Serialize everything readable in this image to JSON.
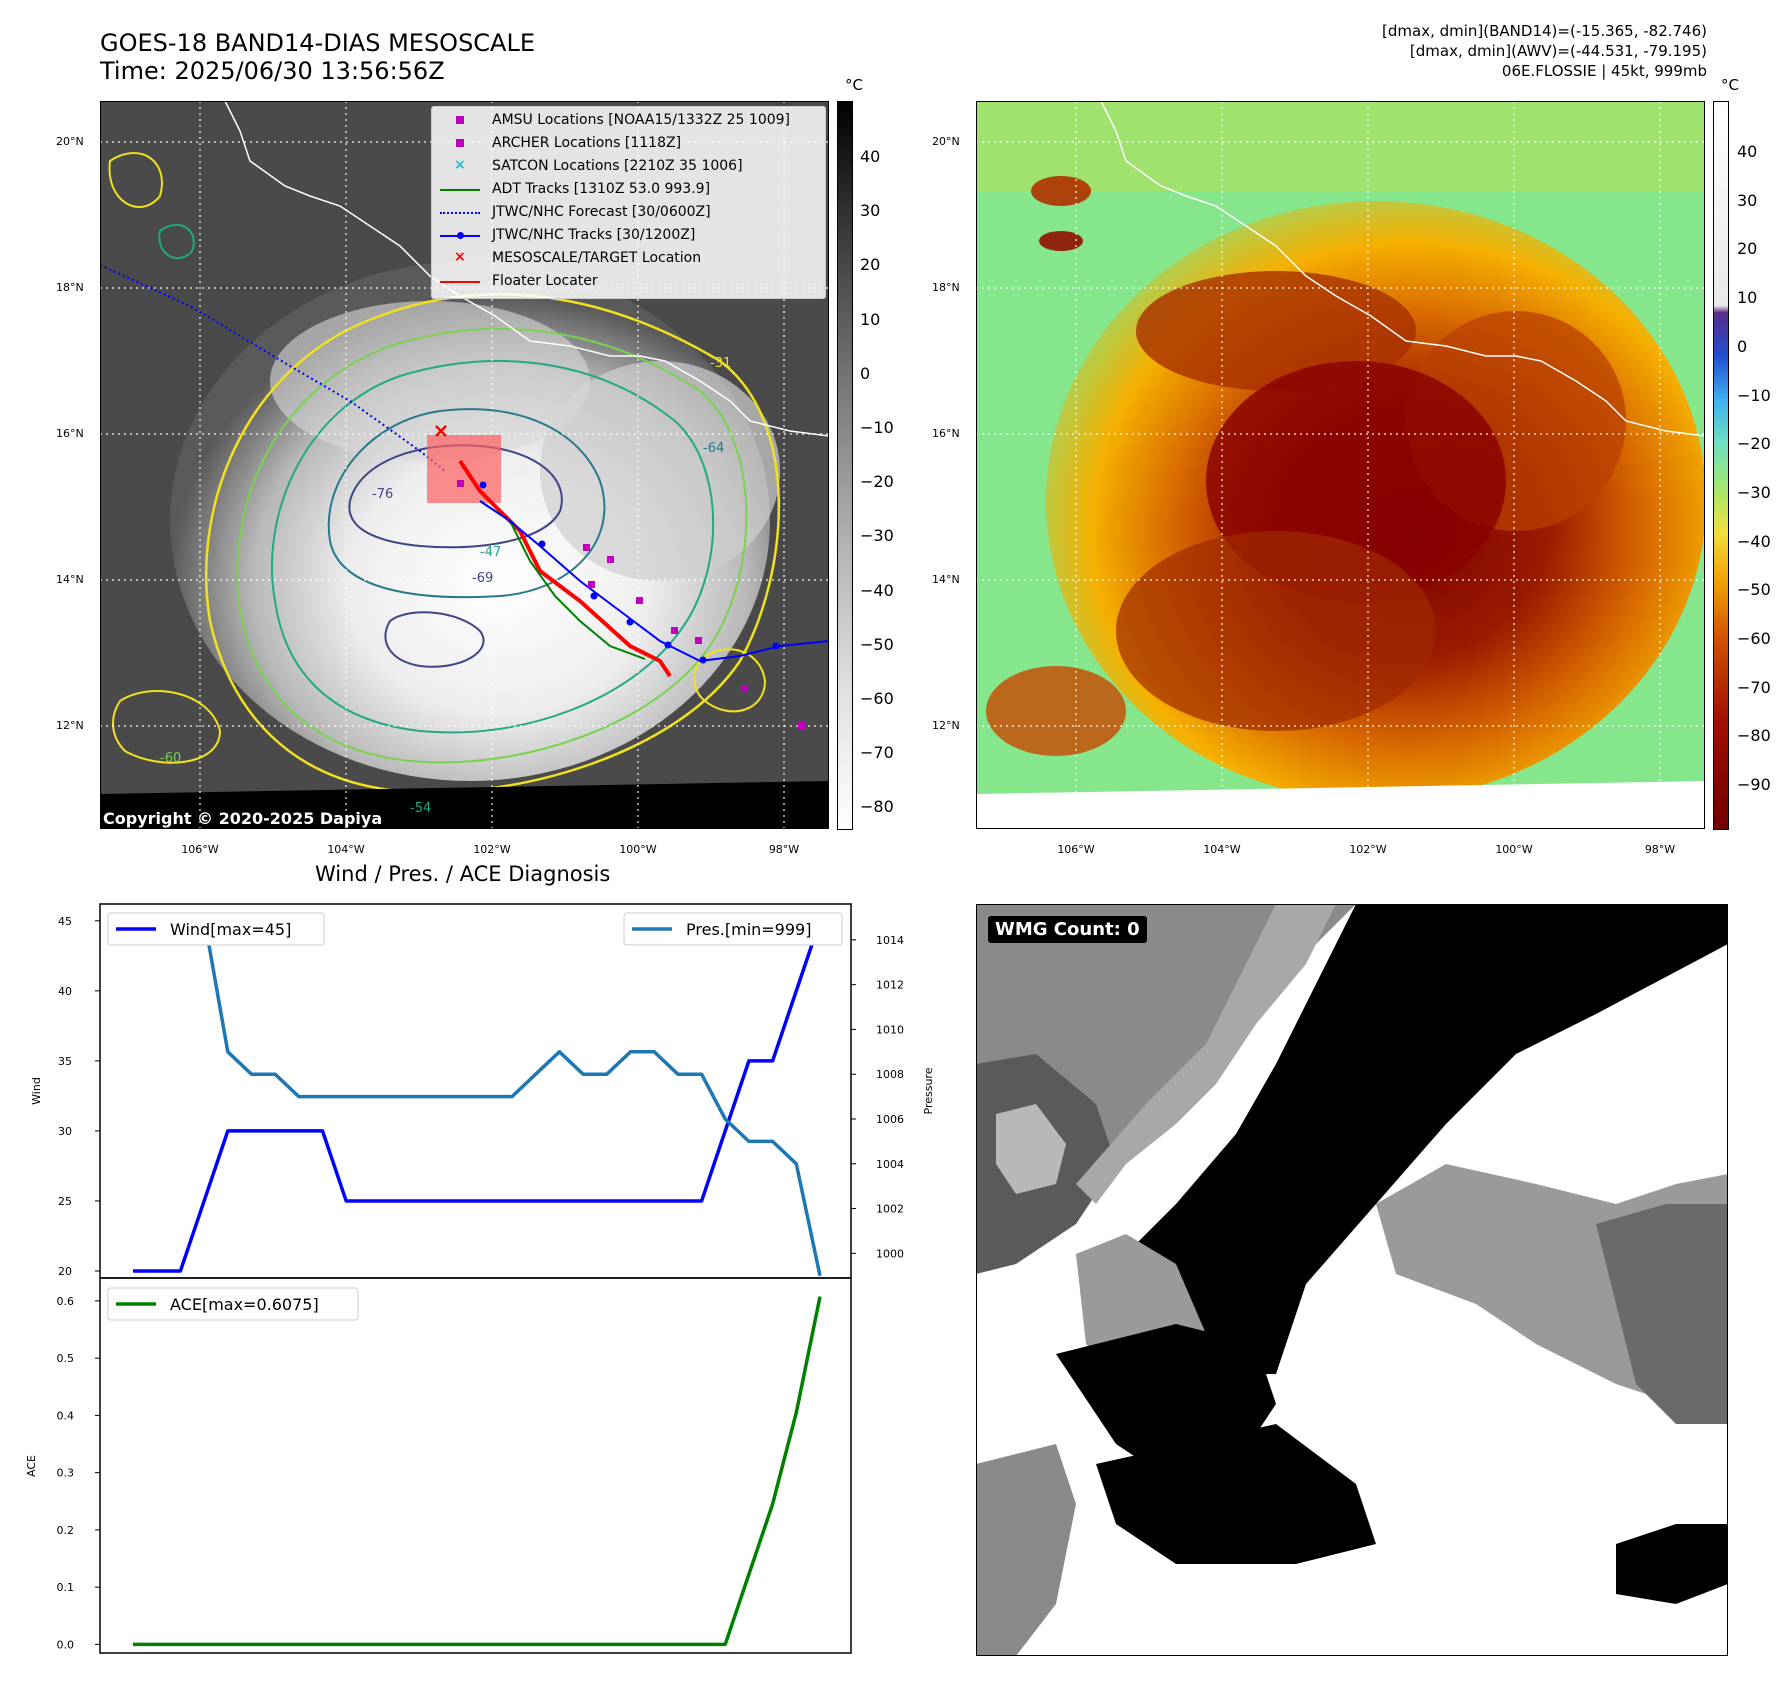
{
  "header": {
    "title_line1": "GOES-18 BAND14-DIAS MESOSCALE",
    "title_line2": "Time: 2025/06/30 13:56:56Z",
    "info_line1": "[dmax, dmin](BAND14)=(-15.365, -82.746)",
    "info_line2": "[dmax, dmin](AWV)=(-44.531, -79.195)",
    "info_line3": "06E.FLOSSIE | 45kt, 999mb"
  },
  "maps": {
    "lat_labels": [
      "20°N",
      "18°N",
      "16°N",
      "14°N",
      "12°N"
    ],
    "lon_labels": [
      "106°W",
      "104°W",
      "102°W",
      "100°W",
      "98°W"
    ],
    "copyright": "Copyright © 2020-2025 Dapiya",
    "unit": "°C",
    "ir_colorbar_ticks": [
      "40",
      "30",
      "20",
      "10",
      "0",
      "−10",
      "−20",
      "−30",
      "−40",
      "−50",
      "−60",
      "−70",
      "−80"
    ],
    "color_colorbar_ticks": [
      "40",
      "30",
      "20",
      "10",
      "0",
      "−10",
      "−20",
      "−30",
      "−40",
      "−50",
      "−60",
      "−70",
      "−80",
      "−90"
    ],
    "contour_labels": [
      "-76",
      "-64",
      "-54",
      "-60",
      "-47",
      "-31",
      "-69"
    ],
    "legend": [
      {
        "label": "AMSU Locations [NOAA15/1332Z 25 1009]",
        "marker": "square",
        "color": "#bf00bf"
      },
      {
        "label": "ARCHER Locations [1118Z]",
        "marker": "square",
        "color": "#bf00bf"
      },
      {
        "label": "SATCON Locations [2210Z 35 1006]",
        "marker": "x",
        "color": "#17becf"
      },
      {
        "label": "ADT Tracks [1310Z 53.0 993.9]",
        "marker": "line",
        "color": "#008000"
      },
      {
        "label": "JTWC/NHC Forecast [30/0600Z]",
        "marker": "dotted",
        "color": "#0000ff"
      },
      {
        "label": "JTWC/NHC Tracks [30/1200Z]",
        "marker": "line-dot",
        "color": "#0000ff"
      },
      {
        "label": "MESOSCALE/TARGET Location",
        "marker": "x",
        "color": "#ff0000"
      },
      {
        "label": "Floater Locater",
        "marker": "line",
        "color": "#ff0000"
      }
    ]
  },
  "wmg": {
    "label": "WMG Count: 0"
  },
  "chart_data": [
    {
      "type": "line",
      "title": "Wind / Pres. / ACE Diagnosis",
      "ylabel": "Wind",
      "ylabel_right": "Pressure",
      "ylim": [
        19.5,
        46.2
      ],
      "ylim_right": [
        998.9,
        1015.6
      ],
      "yticks": [
        20,
        25,
        30,
        35,
        40,
        45
      ],
      "yticks_right": [
        1000,
        1002,
        1004,
        1006,
        1008,
        1010,
        1012,
        1014
      ],
      "legend_left": "Wind[max=45]",
      "legend_right": "Pres.[min=999]",
      "series": [
        {
          "name": "Wind[max=45]",
          "axis": "left",
          "color": "#0000ff",
          "values": [
            20,
            20,
            20,
            25,
            30,
            30,
            30,
            30,
            30,
            25,
            25,
            25,
            25,
            25,
            25,
            25,
            25,
            25,
            25,
            25,
            25,
            25,
            25,
            25,
            25,
            30,
            35,
            35,
            40,
            45
          ]
        },
        {
          "name": "Pres.[min=999]",
          "axis": "right",
          "color": "#1f77b4",
          "values": [
            1015,
            1015,
            1015,
            1015,
            1009,
            1008,
            1008,
            1007,
            1007,
            1007,
            1007,
            1007,
            1007,
            1007,
            1007,
            1007,
            1007,
            1008,
            1009,
            1008,
            1008,
            1009,
            1009,
            1008,
            1008,
            1006,
            1005,
            1005,
            1004,
            999
          ]
        }
      ]
    },
    {
      "type": "line",
      "ylabel": "ACE",
      "ylim": [
        -0.015,
        0.64
      ],
      "yticks": [
        0.0,
        0.1,
        0.2,
        0.3,
        0.4,
        0.5,
        0.6
      ],
      "series": [
        {
          "name": "ACE[max=0.6075]",
          "color": "#008000",
          "values": [
            0,
            0,
            0,
            0,
            0,
            0,
            0,
            0,
            0,
            0,
            0,
            0,
            0,
            0,
            0,
            0,
            0,
            0,
            0,
            0,
            0,
            0,
            0,
            0,
            0,
            0,
            0.1225,
            0.245,
            0.405,
            0.6075
          ]
        }
      ]
    }
  ]
}
